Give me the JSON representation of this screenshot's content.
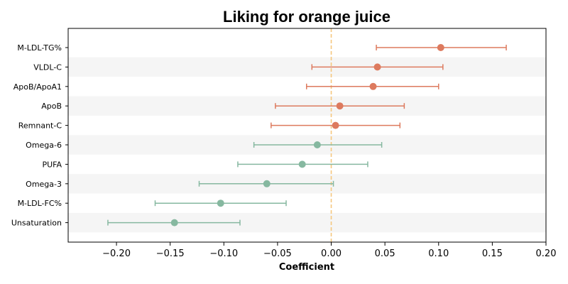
{
  "chart_data": {
    "type": "forest",
    "title": "Liking for orange juice",
    "xlabel": "Coefficient",
    "ylabel": "",
    "xlim": [
      -0.245,
      0.2
    ],
    "xticks": [
      -0.2,
      -0.15,
      -0.1,
      -0.05,
      0.0,
      0.05,
      0.1,
      0.15,
      0.2
    ],
    "xtick_labels": [
      "−0.20",
      "−0.15",
      "−0.10",
      "−0.05",
      "0.00",
      "0.05",
      "0.10",
      "0.15",
      "0.20"
    ],
    "reference_line": {
      "x": 0.0,
      "style": "dashed",
      "color": "#f5c77e"
    },
    "colors": {
      "positive": "#dd7a5e",
      "negative": "#86b8a0",
      "band": "#f5f5f5"
    },
    "grid": false,
    "alternating_row_bands": true,
    "items": [
      {
        "label": "M-LDL-TG%",
        "estimate": 0.102,
        "lower": 0.042,
        "upper": 0.163,
        "group": "positive"
      },
      {
        "label": "VLDL-C",
        "estimate": 0.043,
        "lower": -0.018,
        "upper": 0.104,
        "group": "positive"
      },
      {
        "label": "ApoB/ApoA1",
        "estimate": 0.039,
        "lower": -0.023,
        "upper": 0.1,
        "group": "positive"
      },
      {
        "label": "ApoB",
        "estimate": 0.008,
        "lower": -0.052,
        "upper": 0.068,
        "group": "positive"
      },
      {
        "label": "Remnant-C",
        "estimate": 0.004,
        "lower": -0.056,
        "upper": 0.064,
        "group": "positive"
      },
      {
        "label": "Omega-6",
        "estimate": -0.013,
        "lower": -0.072,
        "upper": 0.047,
        "group": "negative"
      },
      {
        "label": "PUFA",
        "estimate": -0.027,
        "lower": -0.087,
        "upper": 0.034,
        "group": "negative"
      },
      {
        "label": "Omega-3",
        "estimate": -0.06,
        "lower": -0.123,
        "upper": 0.002,
        "group": "negative"
      },
      {
        "label": "M-LDL-FC%",
        "estimate": -0.103,
        "lower": -0.164,
        "upper": -0.042,
        "group": "negative"
      },
      {
        "label": "Unsaturation",
        "estimate": -0.146,
        "lower": -0.208,
        "upper": -0.085,
        "group": "negative"
      }
    ]
  }
}
